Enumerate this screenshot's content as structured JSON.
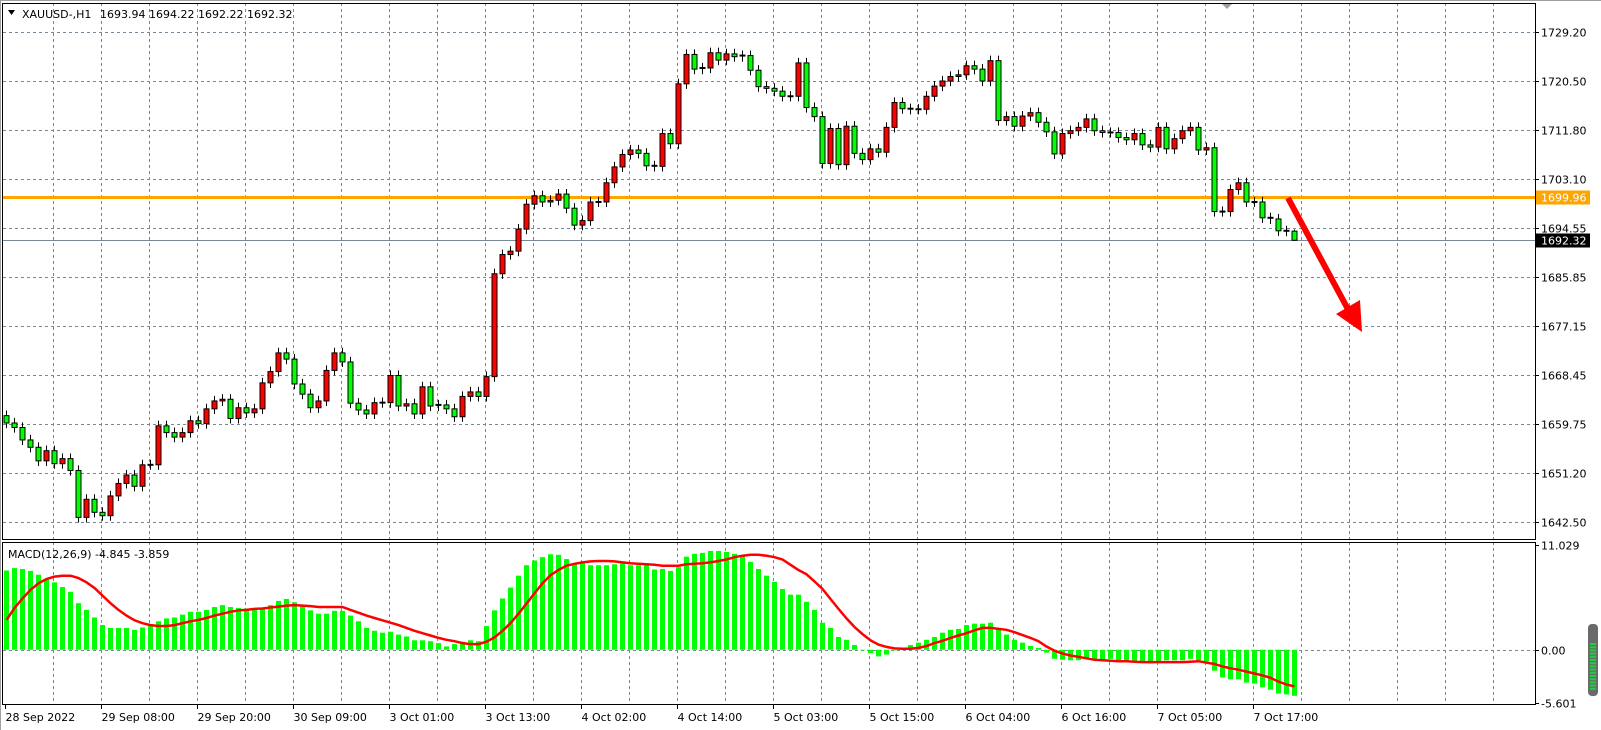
{
  "header": {
    "symbol": "XAUUSD-,H1",
    "ohlc": "1693.94 1694.22 1692.22 1692.32",
    "menu_icon": "triangle-down-icon"
  },
  "macd_header": {
    "label": "MACD(12,26,9)",
    "values": "-4.845 -3.859"
  },
  "colors": {
    "bull_candle": "#ff0000",
    "bear_candle": "#00ff00",
    "histogram": "#00ff00",
    "signal_line": "#ff0000",
    "level_line": "#ffa500",
    "bid_line": "#778899",
    "grid": "#778899",
    "arrow": "#ff0000"
  },
  "chart_data": [
    {
      "type": "candlestick",
      "title": "XAUUSD-,H1",
      "ylim": [
        1639.3,
        1734.3
      ],
      "grid": true,
      "y_ticks": [
        "1729.20",
        "1720.50",
        "1711.80",
        "1703.10",
        "1694.55",
        "1685.85",
        "1677.15",
        "1668.45",
        "1659.75",
        "1651.20",
        "1642.50"
      ],
      "x_ticks": [
        "28 Sep 2022",
        "29 Sep 08:00",
        "29 Sep 20:00",
        "30 Sep 09:00",
        "3 Oct 01:00",
        "3 Oct 13:00",
        "4 Oct 02:00",
        "4 Oct 14:00",
        "5 Oct 03:00",
        "5 Oct 15:00",
        "6 Oct 04:00",
        "6 Oct 16:00",
        "7 Oct 05:00",
        "7 Oct 17:00"
      ],
      "bars_per_x_tick": 12,
      "first_open": 1661.3,
      "last_bar": {
        "open": 1693.94,
        "high": 1694.22,
        "low": 1692.22,
        "close": 1692.32
      },
      "closes": [
        1660.0,
        1659.2,
        1657.0,
        1655.7,
        1653.3,
        1655.1,
        1652.8,
        1653.7,
        1651.6,
        1643.3,
        1646.5,
        1644.2,
        1643.6,
        1647.1,
        1649.3,
        1650.8,
        1648.8,
        1652.6,
        1652.6,
        1659.5,
        1658.3,
        1657.5,
        1658.3,
        1660.4,
        1659.9,
        1662.5,
        1663.9,
        1664.2,
        1660.8,
        1662.7,
        1661.8,
        1662.5,
        1667.1,
        1669.1,
        1672.4,
        1671.3,
        1666.9,
        1665.1,
        1662.7,
        1663.9,
        1669.3,
        1672.4,
        1670.8,
        1663.5,
        1662.3,
        1661.6,
        1663.6,
        1663.6,
        1668.4,
        1663.0,
        1663.4,
        1661.6,
        1666.4,
        1663.0,
        1663.2,
        1662.5,
        1661.1,
        1664.7,
        1665.5,
        1664.7,
        1668.2,
        1686.4,
        1689.8,
        1690.4,
        1694.3,
        1698.7,
        1700.2,
        1699.1,
        1699.4,
        1700.5,
        1698.0,
        1695.0,
        1695.8,
        1699.1,
        1699.1,
        1702.5,
        1705.3,
        1707.5,
        1708.3,
        1707.7,
        1705.5,
        1705.4,
        1711.2,
        1709.4,
        1720.0,
        1725.2,
        1722.6,
        1722.8,
        1725.5,
        1724.2,
        1725.3,
        1724.8,
        1725.0,
        1722.4,
        1719.5,
        1719.2,
        1718.7,
        1717.8,
        1717.8,
        1723.7,
        1715.8,
        1714.2,
        1705.9,
        1712.1,
        1705.7,
        1712.5,
        1707.7,
        1706.6,
        1708.5,
        1707.9,
        1712.3,
        1716.7,
        1715.6,
        1715.5,
        1715.5,
        1717.8,
        1719.6,
        1720.5,
        1721.3,
        1721.6,
        1723.2,
        1722.6,
        1720.5,
        1724.1,
        1713.5,
        1714.2,
        1712.5,
        1714.3,
        1714.9,
        1713.2,
        1711.5,
        1707.6,
        1711.2,
        1711.7,
        1712.3,
        1713.8,
        1711.7,
        1711.4,
        1711.4,
        1710.5,
        1710.1,
        1711.2,
        1709.2,
        1708.8,
        1712.3,
        1708.5,
        1710.3,
        1711.7,
        1712.3,
        1708.3,
        1708.7,
        1697.4,
        1697.4,
        1701.3,
        1702.5,
        1699.1,
        1699.1,
        1696.3,
        1696.1,
        1694.0,
        1693.94,
        1692.32
      ],
      "horizontal_levels": [
        {
          "price": 1699.96,
          "label": "1699.96",
          "color": "#ffa500"
        },
        {
          "price": 1692.32,
          "label": "1692.32",
          "color": "#778899"
        }
      ],
      "annotation": {
        "type": "arrow",
        "direction": "down",
        "color": "#ff0000"
      }
    },
    {
      "type": "bar+line",
      "title": "MACD(12,26,9)",
      "ylim": [
        -5.601,
        11.029
      ],
      "y_ticks": [
        "11.029",
        "0.00",
        "-5.601"
      ],
      "series": [
        {
          "name": "MACD",
          "kind": "histogram",
          "color": "#00ff00",
          "values": [
            8.35,
            8.6,
            8.5,
            8.3,
            7.9,
            7.5,
            7.1,
            6.6,
            6.1,
            4.9,
            4.2,
            3.4,
            2.6,
            2.3,
            2.3,
            2.3,
            2.1,
            2.35,
            2.7,
            3.0,
            3.3,
            3.4,
            3.7,
            4.0,
            4.0,
            4.2,
            4.5,
            4.7,
            4.5,
            4.4,
            4.35,
            4.2,
            4.45,
            4.7,
            5.15,
            5.35,
            5.0,
            4.55,
            4.15,
            3.8,
            3.8,
            4.1,
            4.1,
            3.6,
            3.0,
            2.3,
            2.0,
            1.8,
            1.9,
            1.6,
            1.4,
            1.0,
            1.0,
            0.9,
            0.7,
            0.35,
            0.6,
            0.85,
            1.0,
            0.9,
            2.5,
            4.15,
            5.4,
            6.55,
            7.8,
            8.9,
            9.4,
            9.75,
            10.05,
            10.0,
            9.55,
            9.1,
            9.1,
            8.9,
            8.9,
            8.9,
            9.0,
            9.1,
            8.9,
            8.9,
            9.0,
            8.45,
            8.5,
            8.3,
            8.7,
            9.8,
            10.1,
            10.2,
            10.4,
            10.4,
            10.3,
            10.1,
            9.9,
            9.25,
            8.5,
            7.8,
            7.15,
            6.4,
            5.8,
            5.8,
            5.05,
            4.2,
            2.85,
            2.3,
            1.35,
            1.05,
            0.5,
            0.0,
            -0.35,
            -0.7,
            -0.5,
            0.0,
            0.2,
            0.5,
            0.75,
            1.05,
            1.35,
            1.8,
            2.1,
            2.2,
            2.6,
            2.75,
            2.75,
            2.85,
            2.1,
            1.6,
            1.05,
            0.75,
            0.4,
            0.2,
            -0.3,
            -0.95,
            -1.05,
            -1.1,
            -1.1,
            -0.95,
            -0.95,
            -1.1,
            -0.95,
            -1.1,
            -1.3,
            -1.3,
            -1.3,
            -1.45,
            -1.2,
            -1.1,
            -1.1,
            -1.1,
            -0.95,
            -1.1,
            -1.2,
            -2.2,
            -2.9,
            -3.1,
            -3.1,
            -3.45,
            -3.55,
            -3.95,
            -4.2,
            -4.6,
            -4.7,
            -4.845
          ]
        },
        {
          "name": "Signal",
          "kind": "line",
          "color": "#ff0000",
          "values": [
            3.15,
            4.4,
            5.4,
            6.3,
            7.0,
            7.45,
            7.7,
            7.8,
            7.8,
            7.55,
            7.1,
            6.5,
            5.7,
            4.9,
            4.2,
            3.6,
            3.1,
            2.8,
            2.6,
            2.5,
            2.5,
            2.6,
            2.8,
            3.0,
            3.15,
            3.35,
            3.6,
            3.8,
            4.0,
            4.15,
            4.2,
            4.3,
            4.35,
            4.45,
            4.55,
            4.65,
            4.7,
            4.65,
            4.6,
            4.5,
            4.5,
            4.5,
            4.5,
            4.2,
            3.9,
            3.6,
            3.35,
            3.1,
            2.85,
            2.6,
            2.3,
            2.0,
            1.75,
            1.5,
            1.25,
            1.05,
            0.9,
            0.7,
            0.6,
            0.6,
            0.85,
            1.3,
            2.0,
            2.8,
            3.8,
            4.85,
            5.95,
            7.0,
            7.85,
            8.4,
            8.85,
            9.05,
            9.2,
            9.3,
            9.35,
            9.35,
            9.3,
            9.2,
            9.1,
            9.05,
            9.0,
            8.95,
            8.85,
            8.85,
            8.85,
            9.0,
            9.05,
            9.1,
            9.2,
            9.35,
            9.5,
            9.75,
            9.9,
            10.0,
            10.0,
            9.9,
            9.75,
            9.5,
            8.95,
            8.4,
            7.95,
            7.2,
            6.4,
            5.35,
            4.3,
            3.3,
            2.4,
            1.65,
            1.0,
            0.55,
            0.3,
            0.15,
            0.1,
            0.1,
            0.2,
            0.4,
            0.7,
            0.95,
            1.25,
            1.5,
            1.75,
            2.05,
            2.3,
            2.3,
            2.2,
            2.1,
            1.85,
            1.55,
            1.25,
            0.9,
            0.35,
            -0.1,
            -0.4,
            -0.6,
            -0.75,
            -0.9,
            -1.05,
            -1.1,
            -1.15,
            -1.2,
            -1.2,
            -1.25,
            -1.3,
            -1.3,
            -1.3,
            -1.3,
            -1.3,
            -1.3,
            -1.25,
            -1.2,
            -1.35,
            -1.5,
            -1.75,
            -1.95,
            -2.1,
            -2.3,
            -2.5,
            -2.7,
            -2.95,
            -3.35,
            -3.65,
            -3.859
          ]
        }
      ]
    }
  ]
}
